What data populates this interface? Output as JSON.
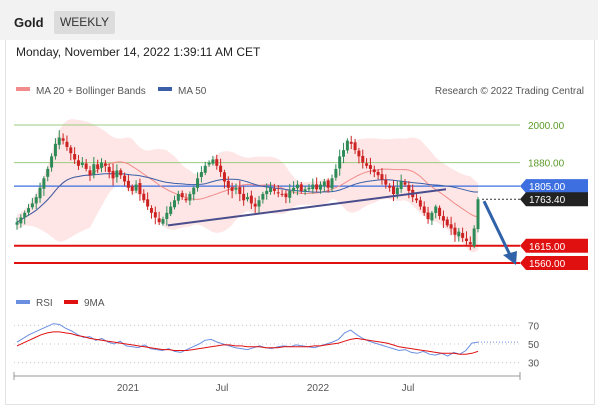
{
  "header": {
    "asset": "Gold",
    "timeframe": "WEEKLY",
    "datetime": "Monday, November 14, 2022 1:39:11 AM CET"
  },
  "legend": {
    "ma20": "MA 20 + Bollinger Bands",
    "ma50": "MA 50",
    "credit": "Research © 2022 Trading Central",
    "rsi": "RSI",
    "rsi_ma": "9MA"
  },
  "colors": {
    "candle_up": "#2e8b57",
    "candle_down": "#cc2222",
    "ma20": "#f28b8b",
    "ma50": "#3a5fa8",
    "bollinger_fill": "#fde0de",
    "resistance_line": "#9ccc80",
    "pivot_line": "#3d6fe0",
    "support_line": "#e01010",
    "trendline": "#4a4e8c",
    "arrow": "#2f62a8",
    "rsi": "#6b8fe0",
    "rsi_ma": "#e01010"
  },
  "chart_data": [
    {
      "type": "candlestick",
      "title": "Gold",
      "x_tick_labels": [
        "2021",
        "Jul",
        "2022",
        "Jul"
      ],
      "ylim": [
        1500,
        2090
      ],
      "levels": [
        {
          "label": "2000.00",
          "value": 2000,
          "kind": "resistance"
        },
        {
          "label": "1880.00",
          "value": 1880,
          "kind": "resistance"
        },
        {
          "label": "1805.00",
          "value": 1805,
          "kind": "pivot"
        },
        {
          "label": "1763.40",
          "value": 1763.4,
          "kind": "last"
        },
        {
          "label": "1615.00",
          "value": 1615,
          "kind": "support"
        },
        {
          "label": "1560.00",
          "value": 1560,
          "kind": "support"
        }
      ],
      "trendlines": [
        {
          "from": [
            "2021-03",
            1680
          ],
          "to": [
            "2022-09",
            1795
          ]
        }
      ],
      "arrow": {
        "from": 1763.4,
        "to": 1560
      },
      "closes": [
        1690,
        1705,
        1720,
        1735,
        1750,
        1770,
        1800,
        1830,
        1860,
        1900,
        1940,
        1960,
        1950,
        1930,
        1910,
        1890,
        1870,
        1880,
        1860,
        1840,
        1875,
        1860,
        1880,
        1870,
        1850,
        1830,
        1855,
        1840,
        1820,
        1800,
        1790,
        1810,
        1780,
        1760,
        1740,
        1720,
        1705,
        1690,
        1700,
        1720,
        1740,
        1760,
        1780,
        1770,
        1760,
        1780,
        1800,
        1830,
        1850,
        1870,
        1880,
        1890,
        1870,
        1850,
        1820,
        1800,
        1790,
        1800,
        1780,
        1760,
        1770,
        1750,
        1740,
        1760,
        1780,
        1790,
        1800,
        1790,
        1785,
        1780,
        1770,
        1790,
        1800,
        1810,
        1790,
        1795,
        1800,
        1810,
        1795,
        1810,
        1820,
        1800,
        1830,
        1860,
        1900,
        1920,
        1950,
        1940,
        1920,
        1900,
        1880,
        1870,
        1860,
        1850,
        1840,
        1825,
        1810,
        1800,
        1780,
        1800,
        1820,
        1810,
        1790,
        1770,
        1760,
        1740,
        1720,
        1700,
        1720,
        1740,
        1710,
        1695,
        1680,
        1670,
        1650,
        1660,
        1640,
        1630,
        1620,
        1670,
        1763.4
      ]
    },
    {
      "type": "line",
      "title": "RSI",
      "ylim": [
        22,
        78
      ],
      "y_tick_labels": [
        "70",
        "50",
        "30"
      ],
      "series": [
        {
          "name": "RSI",
          "values": [
            52,
            56,
            60,
            63,
            66,
            69,
            72,
            71,
            67,
            64,
            60,
            57,
            58,
            54,
            56,
            52,
            50,
            53,
            48,
            47,
            46,
            49,
            45,
            44,
            43,
            45,
            42,
            41,
            44,
            47,
            50,
            54,
            55,
            52,
            50,
            48,
            46,
            45,
            44,
            46,
            48,
            46,
            45,
            47,
            48,
            47,
            49,
            48,
            47,
            46,
            48,
            50,
            52,
            55,
            62,
            65,
            60,
            56,
            53,
            51,
            49,
            47,
            45,
            43,
            44,
            41,
            40,
            42,
            39,
            38,
            40,
            37,
            41,
            39,
            43,
            51,
            52
          ]
        },
        {
          "name": "9MA",
          "values": [
            48,
            51,
            54,
            57,
            60,
            62,
            63,
            63,
            62,
            61,
            59,
            58,
            56,
            55,
            54,
            53,
            52,
            51,
            50,
            49,
            48,
            47,
            46,
            45,
            44,
            44,
            43,
            43,
            43,
            44,
            45,
            46,
            47,
            48,
            49,
            49,
            48,
            48,
            47,
            47,
            47,
            46,
            46,
            46,
            47,
            47,
            47,
            47,
            47,
            48,
            48,
            49,
            50,
            51,
            53,
            55,
            56,
            55,
            54,
            53,
            52,
            51,
            49,
            47,
            46,
            45,
            44,
            43,
            42,
            41,
            40,
            40,
            40,
            39,
            39,
            40,
            42
          ]
        }
      ]
    }
  ]
}
